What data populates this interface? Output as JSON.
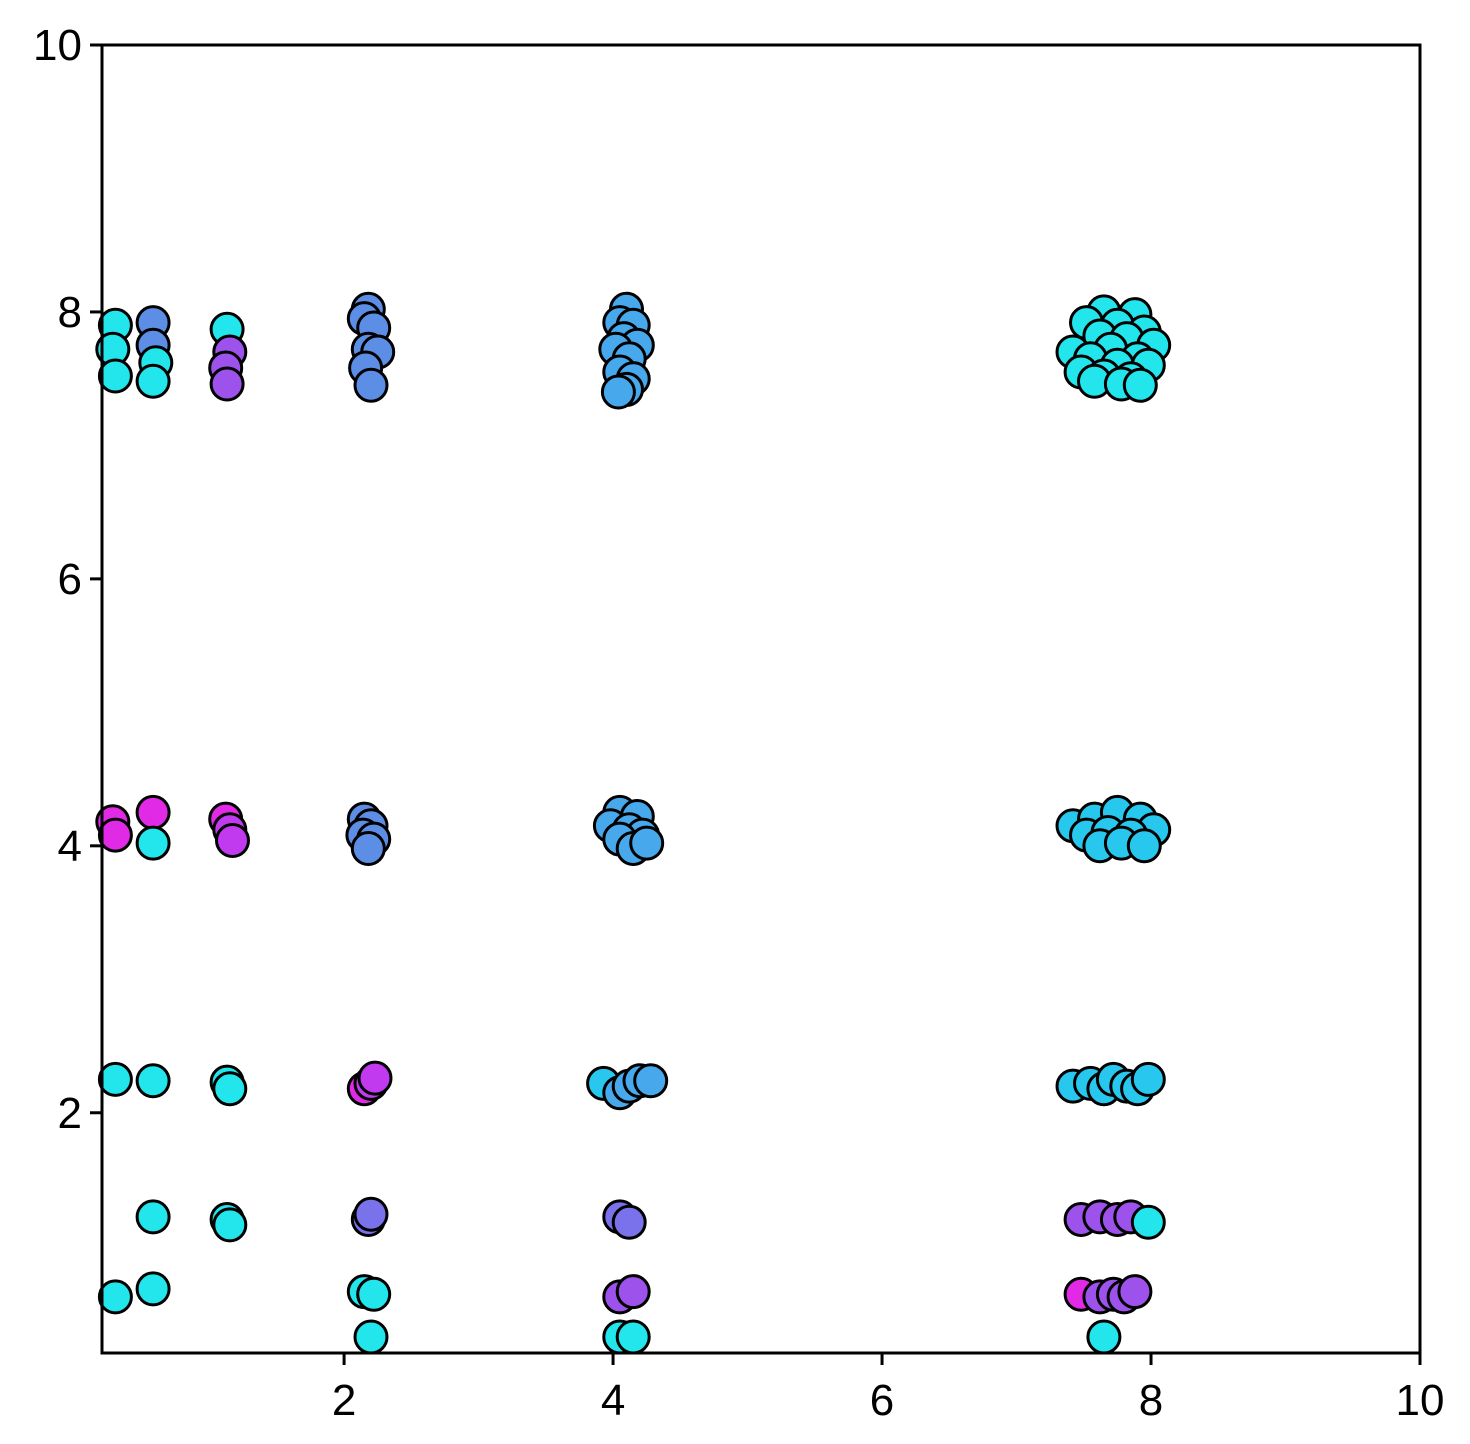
{
  "chart_data": {
    "type": "scatter",
    "title": "",
    "xlabel": "",
    "ylabel": "",
    "xlim": [
      0.2,
      10
    ],
    "ylim": [
      0.2,
      10
    ],
    "xticks": [
      2,
      4,
      6,
      8,
      10
    ],
    "yticks": [
      2,
      4,
      6,
      8,
      10
    ],
    "xtick_labels": [
      "2",
      "4",
      "6",
      "8",
      "10"
    ],
    "ytick_labels": [
      "2",
      "4",
      "6",
      "8",
      "10"
    ],
    "grid": false,
    "legend": "none",
    "marker": {
      "shape": "circle",
      "edge_color": "#000000"
    },
    "palette": {
      "cyan": "#22e6ec",
      "sky": "#28c8ee",
      "azure": "#48a8ec",
      "blue": "#5c8ee6",
      "indigo": "#7a72ea",
      "violet": "#9e52ec",
      "purple": "#c23af0",
      "magenta": "#e02ae6"
    },
    "points": [
      {
        "x": 0.3,
        "y": 7.9,
        "color": "cyan"
      },
      {
        "x": 0.28,
        "y": 7.72,
        "color": "cyan"
      },
      {
        "x": 0.3,
        "y": 7.52,
        "color": "cyan"
      },
      {
        "x": 0.58,
        "y": 7.92,
        "color": "blue"
      },
      {
        "x": 0.58,
        "y": 7.75,
        "color": "blue"
      },
      {
        "x": 0.6,
        "y": 7.62,
        "color": "cyan"
      },
      {
        "x": 0.58,
        "y": 7.48,
        "color": "cyan"
      },
      {
        "x": 1.13,
        "y": 7.87,
        "color": "cyan"
      },
      {
        "x": 1.15,
        "y": 7.7,
        "color": "violet"
      },
      {
        "x": 1.12,
        "y": 7.58,
        "color": "violet"
      },
      {
        "x": 1.13,
        "y": 7.46,
        "color": "violet"
      },
      {
        "x": 2.18,
        "y": 8.02,
        "color": "blue"
      },
      {
        "x": 2.15,
        "y": 7.95,
        "color": "blue"
      },
      {
        "x": 2.22,
        "y": 7.88,
        "color": "blue"
      },
      {
        "x": 2.18,
        "y": 7.72,
        "color": "blue"
      },
      {
        "x": 2.25,
        "y": 7.7,
        "color": "blue"
      },
      {
        "x": 2.16,
        "y": 7.58,
        "color": "blue"
      },
      {
        "x": 2.2,
        "y": 7.45,
        "color": "blue"
      },
      {
        "x": 4.1,
        "y": 8.02,
        "color": "azure"
      },
      {
        "x": 4.05,
        "y": 7.92,
        "color": "azure"
      },
      {
        "x": 4.15,
        "y": 7.9,
        "color": "azure"
      },
      {
        "x": 4.08,
        "y": 7.8,
        "color": "azure"
      },
      {
        "x": 4.18,
        "y": 7.75,
        "color": "azure"
      },
      {
        "x": 4.02,
        "y": 7.72,
        "color": "azure"
      },
      {
        "x": 4.12,
        "y": 7.65,
        "color": "azure"
      },
      {
        "x": 4.05,
        "y": 7.55,
        "color": "azure"
      },
      {
        "x": 4.15,
        "y": 7.5,
        "color": "azure"
      },
      {
        "x": 4.1,
        "y": 7.42,
        "color": "azure"
      },
      {
        "x": 4.04,
        "y": 7.4,
        "color": "azure"
      },
      {
        "x": 7.65,
        "y": 8.0,
        "color": "cyan"
      },
      {
        "x": 7.88,
        "y": 7.98,
        "color": "cyan"
      },
      {
        "x": 7.52,
        "y": 7.92,
        "color": "cyan"
      },
      {
        "x": 7.75,
        "y": 7.9,
        "color": "cyan"
      },
      {
        "x": 7.95,
        "y": 7.85,
        "color": "cyan"
      },
      {
        "x": 7.62,
        "y": 7.82,
        "color": "cyan"
      },
      {
        "x": 7.82,
        "y": 7.8,
        "color": "cyan"
      },
      {
        "x": 8.02,
        "y": 7.75,
        "color": "cyan"
      },
      {
        "x": 7.42,
        "y": 7.7,
        "color": "cyan"
      },
      {
        "x": 7.7,
        "y": 7.72,
        "color": "cyan"
      },
      {
        "x": 7.55,
        "y": 7.65,
        "color": "cyan"
      },
      {
        "x": 7.9,
        "y": 7.65,
        "color": "cyan"
      },
      {
        "x": 7.75,
        "y": 7.6,
        "color": "cyan"
      },
      {
        "x": 7.98,
        "y": 7.6,
        "color": "cyan"
      },
      {
        "x": 7.48,
        "y": 7.55,
        "color": "cyan"
      },
      {
        "x": 7.65,
        "y": 7.52,
        "color": "cyan"
      },
      {
        "x": 7.85,
        "y": 7.5,
        "color": "cyan"
      },
      {
        "x": 7.58,
        "y": 7.48,
        "color": "cyan"
      },
      {
        "x": 7.78,
        "y": 7.46,
        "color": "cyan"
      },
      {
        "x": 7.92,
        "y": 7.45,
        "color": "cyan"
      },
      {
        "x": 0.28,
        "y": 4.18,
        "color": "magenta"
      },
      {
        "x": 0.3,
        "y": 4.08,
        "color": "magenta"
      },
      {
        "x": 0.58,
        "y": 4.25,
        "color": "magenta"
      },
      {
        "x": 0.58,
        "y": 4.02,
        "color": "cyan"
      },
      {
        "x": 1.12,
        "y": 4.2,
        "color": "magenta"
      },
      {
        "x": 1.15,
        "y": 4.12,
        "color": "purple"
      },
      {
        "x": 1.17,
        "y": 4.04,
        "color": "purple"
      },
      {
        "x": 2.15,
        "y": 4.2,
        "color": "blue"
      },
      {
        "x": 2.2,
        "y": 4.15,
        "color": "blue"
      },
      {
        "x": 2.14,
        "y": 4.08,
        "color": "blue"
      },
      {
        "x": 2.22,
        "y": 4.05,
        "color": "blue"
      },
      {
        "x": 2.18,
        "y": 3.98,
        "color": "blue"
      },
      {
        "x": 4.05,
        "y": 4.25,
        "color": "azure"
      },
      {
        "x": 4.18,
        "y": 4.22,
        "color": "azure"
      },
      {
        "x": 3.98,
        "y": 4.15,
        "color": "azure"
      },
      {
        "x": 4.12,
        "y": 4.12,
        "color": "azure"
      },
      {
        "x": 4.22,
        "y": 4.08,
        "color": "azure"
      },
      {
        "x": 4.05,
        "y": 4.05,
        "color": "azure"
      },
      {
        "x": 4.15,
        "y": 3.98,
        "color": "azure"
      },
      {
        "x": 4.25,
        "y": 4.02,
        "color": "azure"
      },
      {
        "x": 7.42,
        "y": 4.15,
        "color": "sky"
      },
      {
        "x": 7.58,
        "y": 4.2,
        "color": "sky"
      },
      {
        "x": 7.75,
        "y": 4.25,
        "color": "sky"
      },
      {
        "x": 7.92,
        "y": 4.2,
        "color": "sky"
      },
      {
        "x": 8.02,
        "y": 4.12,
        "color": "sky"
      },
      {
        "x": 7.52,
        "y": 4.08,
        "color": "sky"
      },
      {
        "x": 7.68,
        "y": 4.1,
        "color": "sky"
      },
      {
        "x": 7.85,
        "y": 4.08,
        "color": "sky"
      },
      {
        "x": 7.62,
        "y": 4.0,
        "color": "sky"
      },
      {
        "x": 7.78,
        "y": 4.02,
        "color": "sky"
      },
      {
        "x": 7.95,
        "y": 4.0,
        "color": "sky"
      },
      {
        "x": 0.3,
        "y": 2.25,
        "color": "cyan"
      },
      {
        "x": 0.58,
        "y": 2.24,
        "color": "cyan"
      },
      {
        "x": 1.13,
        "y": 2.23,
        "color": "cyan"
      },
      {
        "x": 1.15,
        "y": 2.18,
        "color": "cyan"
      },
      {
        "x": 2.15,
        "y": 2.18,
        "color": "magenta"
      },
      {
        "x": 2.2,
        "y": 2.22,
        "color": "purple"
      },
      {
        "x": 2.23,
        "y": 2.26,
        "color": "purple"
      },
      {
        "x": 3.93,
        "y": 2.22,
        "color": "sky"
      },
      {
        "x": 4.05,
        "y": 2.15,
        "color": "azure"
      },
      {
        "x": 4.12,
        "y": 2.2,
        "color": "azure"
      },
      {
        "x": 4.2,
        "y": 2.24,
        "color": "azure"
      },
      {
        "x": 4.28,
        "y": 2.24,
        "color": "azure"
      },
      {
        "x": 7.42,
        "y": 2.2,
        "color": "sky"
      },
      {
        "x": 7.55,
        "y": 2.22,
        "color": "sky"
      },
      {
        "x": 7.65,
        "y": 2.18,
        "color": "sky"
      },
      {
        "x": 7.72,
        "y": 2.25,
        "color": "sky"
      },
      {
        "x": 7.82,
        "y": 2.2,
        "color": "sky"
      },
      {
        "x": 7.9,
        "y": 2.18,
        "color": "sky"
      },
      {
        "x": 7.98,
        "y": 2.25,
        "color": "sky"
      },
      {
        "x": 0.58,
        "y": 1.22,
        "color": "cyan"
      },
      {
        "x": 1.13,
        "y": 1.2,
        "color": "cyan"
      },
      {
        "x": 1.15,
        "y": 1.16,
        "color": "cyan"
      },
      {
        "x": 2.18,
        "y": 1.2,
        "color": "indigo"
      },
      {
        "x": 2.2,
        "y": 1.24,
        "color": "indigo"
      },
      {
        "x": 4.05,
        "y": 1.22,
        "color": "indigo"
      },
      {
        "x": 4.12,
        "y": 1.18,
        "color": "indigo"
      },
      {
        "x": 7.48,
        "y": 1.2,
        "color": "violet"
      },
      {
        "x": 7.62,
        "y": 1.22,
        "color": "violet"
      },
      {
        "x": 7.75,
        "y": 1.2,
        "color": "violet"
      },
      {
        "x": 7.85,
        "y": 1.22,
        "color": "violet"
      },
      {
        "x": 7.98,
        "y": 1.18,
        "color": "cyan"
      },
      {
        "x": 0.3,
        "y": 0.62,
        "color": "cyan"
      },
      {
        "x": 0.58,
        "y": 0.68,
        "color": "cyan"
      },
      {
        "x": 2.15,
        "y": 0.66,
        "color": "cyan"
      },
      {
        "x": 2.22,
        "y": 0.64,
        "color": "cyan"
      },
      {
        "x": 2.2,
        "y": 0.32,
        "color": "cyan"
      },
      {
        "x": 4.05,
        "y": 0.62,
        "color": "violet"
      },
      {
        "x": 4.15,
        "y": 0.66,
        "color": "violet"
      },
      {
        "x": 4.05,
        "y": 0.32,
        "color": "cyan"
      },
      {
        "x": 4.15,
        "y": 0.32,
        "color": "cyan"
      },
      {
        "x": 7.48,
        "y": 0.64,
        "color": "magenta"
      },
      {
        "x": 7.62,
        "y": 0.62,
        "color": "violet"
      },
      {
        "x": 7.72,
        "y": 0.64,
        "color": "violet"
      },
      {
        "x": 7.8,
        "y": 0.62,
        "color": "violet"
      },
      {
        "x": 7.88,
        "y": 0.66,
        "color": "violet"
      },
      {
        "x": 7.65,
        "y": 0.32,
        "color": "cyan"
      }
    ]
  }
}
